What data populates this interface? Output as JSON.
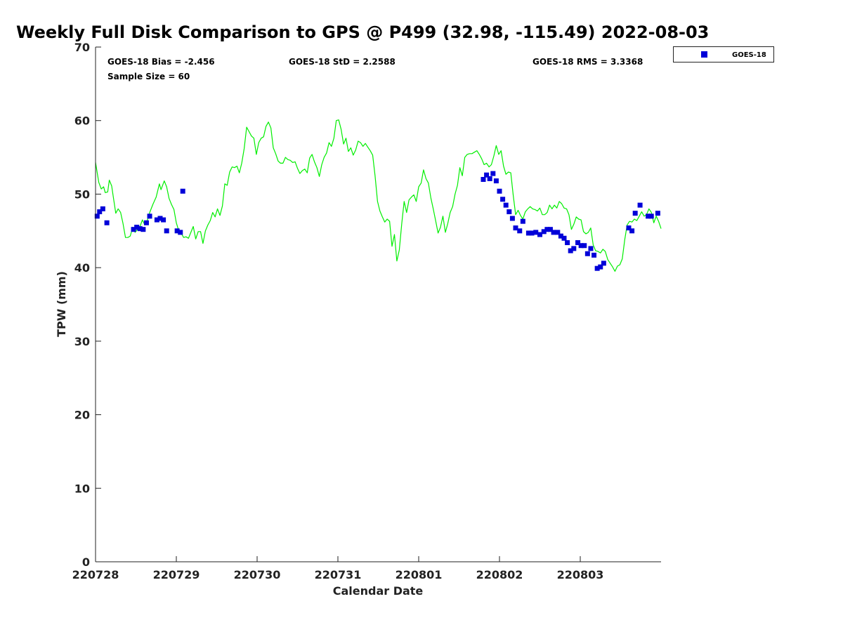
{
  "chart_data": {
    "type": "scatter",
    "title": "Weekly Full Disk Comparison to GPS @ P499 (32.98, -115.49) 2022-08-03",
    "xlabel": "Calendar Date",
    "ylabel": "TPW (mm)",
    "x_unit": "days after 220728 00Z",
    "xlim": [
      0,
      7
    ],
    "ylim": [
      0,
      70
    ],
    "yticks": [
      0,
      10,
      20,
      30,
      40,
      50,
      60,
      70
    ],
    "xticks": [
      {
        "pos": 0,
        "label": "220728"
      },
      {
        "pos": 1,
        "label": "220729"
      },
      {
        "pos": 2,
        "label": "220730"
      },
      {
        "pos": 3,
        "label": "220731"
      },
      {
        "pos": 4,
        "label": "220801"
      },
      {
        "pos": 5,
        "label": "220802"
      },
      {
        "pos": 6,
        "label": "220803"
      }
    ],
    "stats": {
      "bias": "GOES-18 Bias = -2.456",
      "std": "GOES-18 StD = 2.2588",
      "rms": "GOES-18 RMS = 3.3368",
      "sample": "Sample Size = 60"
    },
    "legend": {
      "label": "GOES-18",
      "position": "top-right outside",
      "color": "#0000d8"
    },
    "series": [
      {
        "name": "GOES-18",
        "kind": "markers",
        "color": "#0000d8",
        "points": [
          [
            0.02,
            47.0
          ],
          [
            0.05,
            47.6
          ],
          [
            0.09,
            48.0
          ],
          [
            0.14,
            46.1
          ],
          [
            0.47,
            45.2
          ],
          [
            0.51,
            45.5
          ],
          [
            0.55,
            45.3
          ],
          [
            0.59,
            45.2
          ],
          [
            0.63,
            46.1
          ],
          [
            0.67,
            47.0
          ],
          [
            0.76,
            46.5
          ],
          [
            0.8,
            46.7
          ],
          [
            0.84,
            46.5
          ],
          [
            0.88,
            45.0
          ],
          [
            1.01,
            45.0
          ],
          [
            1.05,
            44.8
          ],
          [
            1.08,
            50.4
          ],
          [
            4.8,
            52.0
          ],
          [
            4.84,
            52.6
          ],
          [
            4.88,
            52.1
          ],
          [
            4.92,
            52.8
          ],
          [
            4.96,
            51.8
          ],
          [
            5.0,
            50.4
          ],
          [
            5.04,
            49.3
          ],
          [
            5.08,
            48.5
          ],
          [
            5.12,
            47.6
          ],
          [
            5.16,
            46.7
          ],
          [
            5.2,
            45.4
          ],
          [
            5.25,
            45.0
          ],
          [
            5.29,
            46.3
          ],
          [
            5.36,
            44.7
          ],
          [
            5.4,
            44.7
          ],
          [
            5.45,
            44.8
          ],
          [
            5.5,
            44.5
          ],
          [
            5.55,
            44.9
          ],
          [
            5.59,
            45.2
          ],
          [
            5.63,
            45.2
          ],
          [
            5.67,
            44.8
          ],
          [
            5.72,
            44.8
          ],
          [
            5.76,
            44.3
          ],
          [
            5.8,
            44.0
          ],
          [
            5.84,
            43.4
          ],
          [
            5.88,
            42.3
          ],
          [
            5.92,
            42.6
          ],
          [
            5.97,
            43.4
          ],
          [
            6.01,
            43.0
          ],
          [
            6.05,
            43.0
          ],
          [
            6.09,
            41.9
          ],
          [
            6.13,
            42.6
          ],
          [
            6.17,
            41.7
          ],
          [
            6.21,
            39.9
          ],
          [
            6.25,
            40.1
          ],
          [
            6.29,
            40.6
          ],
          [
            6.6,
            45.4
          ],
          [
            6.64,
            45.0
          ],
          [
            6.68,
            47.4
          ],
          [
            6.74,
            48.5
          ],
          [
            6.84,
            47.0
          ],
          [
            6.88,
            47.0
          ],
          [
            6.96,
            47.4
          ]
        ]
      },
      {
        "name": "GPS",
        "kind": "line",
        "color": "#00ee00",
        "points": [
          [
            0.0,
            54.3
          ],
          [
            0.04,
            51.6
          ],
          [
            0.07,
            50.7
          ],
          [
            0.1,
            51.0
          ],
          [
            0.12,
            50.2
          ],
          [
            0.15,
            50.3
          ],
          [
            0.17,
            51.9
          ],
          [
            0.2,
            51.1
          ],
          [
            0.22,
            49.6
          ],
          [
            0.25,
            47.4
          ],
          [
            0.28,
            48.0
          ],
          [
            0.31,
            47.5
          ],
          [
            0.34,
            46.0
          ],
          [
            0.37,
            44.1
          ],
          [
            0.4,
            44.1
          ],
          [
            0.43,
            44.3
          ],
          [
            0.46,
            45.5
          ],
          [
            0.49,
            44.8
          ],
          [
            0.52,
            45.2
          ],
          [
            0.55,
            45.6
          ],
          [
            0.58,
            46.5
          ],
          [
            0.61,
            45.8
          ],
          [
            0.64,
            46.4
          ],
          [
            0.67,
            47.5
          ],
          [
            0.71,
            48.6
          ],
          [
            0.75,
            49.6
          ],
          [
            0.79,
            51.4
          ],
          [
            0.81,
            50.6
          ],
          [
            0.85,
            51.8
          ],
          [
            0.88,
            51.0
          ],
          [
            0.91,
            49.4
          ],
          [
            0.94,
            48.6
          ],
          [
            0.97,
            47.9
          ],
          [
            1.0,
            46.1
          ],
          [
            1.03,
            45.0
          ],
          [
            1.06,
            44.7
          ],
          [
            1.09,
            44.1
          ],
          [
            1.12,
            44.2
          ],
          [
            1.15,
            44.0
          ],
          [
            1.18,
            44.8
          ],
          [
            1.21,
            45.6
          ],
          [
            1.24,
            43.9
          ],
          [
            1.27,
            44.9
          ],
          [
            1.3,
            44.9
          ],
          [
            1.33,
            43.3
          ],
          [
            1.36,
            45.0
          ],
          [
            1.39,
            45.8
          ],
          [
            1.42,
            46.4
          ],
          [
            1.45,
            47.5
          ],
          [
            1.48,
            46.9
          ],
          [
            1.51,
            48.0
          ],
          [
            1.54,
            47.1
          ],
          [
            1.57,
            48.4
          ],
          [
            1.6,
            51.4
          ],
          [
            1.63,
            51.2
          ],
          [
            1.66,
            53.0
          ],
          [
            1.69,
            53.7
          ],
          [
            1.72,
            53.6
          ],
          [
            1.75,
            53.8
          ],
          [
            1.78,
            52.9
          ],
          [
            1.81,
            54.2
          ],
          [
            1.84,
            56.2
          ],
          [
            1.87,
            59.1
          ],
          [
            1.9,
            58.5
          ],
          [
            1.93,
            57.9
          ],
          [
            1.96,
            57.6
          ],
          [
            1.99,
            55.4
          ],
          [
            2.02,
            57.0
          ],
          [
            2.05,
            57.6
          ],
          [
            2.08,
            57.8
          ],
          [
            2.11,
            59.2
          ],
          [
            2.14,
            59.8
          ],
          [
            2.17,
            59.0
          ],
          [
            2.2,
            56.3
          ],
          [
            2.23,
            55.5
          ],
          [
            2.26,
            54.5
          ],
          [
            2.29,
            54.2
          ],
          [
            2.32,
            54.2
          ],
          [
            2.35,
            55.0
          ],
          [
            2.38,
            54.7
          ],
          [
            2.41,
            54.6
          ],
          [
            2.44,
            54.3
          ],
          [
            2.47,
            54.4
          ],
          [
            2.5,
            53.5
          ],
          [
            2.53,
            52.8
          ],
          [
            2.56,
            53.2
          ],
          [
            2.59,
            53.4
          ],
          [
            2.62,
            52.9
          ],
          [
            2.65,
            54.9
          ],
          [
            2.68,
            55.4
          ],
          [
            2.71,
            54.4
          ],
          [
            2.74,
            53.6
          ],
          [
            2.77,
            52.4
          ],
          [
            2.8,
            54.0
          ],
          [
            2.83,
            55.0
          ],
          [
            2.86,
            55.6
          ],
          [
            2.89,
            57.0
          ],
          [
            2.92,
            56.5
          ],
          [
            2.95,
            57.6
          ],
          [
            2.98,
            60.0
          ],
          [
            3.01,
            60.1
          ],
          [
            3.04,
            58.8
          ],
          [
            3.07,
            56.8
          ],
          [
            3.1,
            57.6
          ],
          [
            3.13,
            55.8
          ],
          [
            3.16,
            56.3
          ],
          [
            3.19,
            55.3
          ],
          [
            3.22,
            56.0
          ],
          [
            3.25,
            57.2
          ],
          [
            3.28,
            57.0
          ],
          [
            3.31,
            56.5
          ],
          [
            3.34,
            56.9
          ],
          [
            3.37,
            56.4
          ],
          [
            3.4,
            55.9
          ],
          [
            3.43,
            55.3
          ],
          [
            3.46,
            52.5
          ],
          [
            3.49,
            49.0
          ],
          [
            3.52,
            47.7
          ],
          [
            3.55,
            46.9
          ],
          [
            3.58,
            46.2
          ],
          [
            3.61,
            46.6
          ],
          [
            3.64,
            46.3
          ],
          [
            3.67,
            42.9
          ],
          [
            3.7,
            44.5
          ],
          [
            3.73,
            40.9
          ],
          [
            3.76,
            42.4
          ],
          [
            3.79,
            46.0
          ],
          [
            3.82,
            49.0
          ],
          [
            3.85,
            47.5
          ],
          [
            3.88,
            49.2
          ],
          [
            3.91,
            49.6
          ],
          [
            3.94,
            49.9
          ],
          [
            3.97,
            49.0
          ],
          [
            4.0,
            51.0
          ],
          [
            4.03,
            51.5
          ],
          [
            4.06,
            53.3
          ],
          [
            4.09,
            52.1
          ],
          [
            4.12,
            51.5
          ],
          [
            4.15,
            49.5
          ],
          [
            4.18,
            48.0
          ],
          [
            4.21,
            46.4
          ],
          [
            4.24,
            44.7
          ],
          [
            4.27,
            45.5
          ],
          [
            4.3,
            47.0
          ],
          [
            4.33,
            44.8
          ],
          [
            4.36,
            46.0
          ],
          [
            4.39,
            47.5
          ],
          [
            4.42,
            48.3
          ],
          [
            4.45,
            50.0
          ],
          [
            4.48,
            51.2
          ],
          [
            4.51,
            53.6
          ],
          [
            4.54,
            52.5
          ],
          [
            4.57,
            55.0
          ],
          [
            4.6,
            55.4
          ],
          [
            4.63,
            55.5
          ],
          [
            4.66,
            55.5
          ],
          [
            4.69,
            55.7
          ],
          [
            4.72,
            55.9
          ],
          [
            4.75,
            55.4
          ],
          [
            4.78,
            54.8
          ],
          [
            4.81,
            54.0
          ],
          [
            4.84,
            54.2
          ],
          [
            4.87,
            53.7
          ],
          [
            4.9,
            54.0
          ],
          [
            4.93,
            55.2
          ],
          [
            4.96,
            56.6
          ],
          [
            4.99,
            55.4
          ],
          [
            5.02,
            55.9
          ],
          [
            5.05,
            53.8
          ],
          [
            5.08,
            52.7
          ],
          [
            5.11,
            53.0
          ],
          [
            5.14,
            52.9
          ],
          [
            5.17,
            49.9
          ],
          [
            5.2,
            47.2
          ],
          [
            5.23,
            47.8
          ],
          [
            5.26,
            47.1
          ],
          [
            5.29,
            46.6
          ],
          [
            5.32,
            47.6
          ],
          [
            5.35,
            48.0
          ],
          [
            5.38,
            48.3
          ],
          [
            5.41,
            48.0
          ],
          [
            5.44,
            47.9
          ],
          [
            5.47,
            47.7
          ],
          [
            5.5,
            48.1
          ],
          [
            5.53,
            47.2
          ],
          [
            5.56,
            47.2
          ],
          [
            5.59,
            47.5
          ],
          [
            5.62,
            48.5
          ],
          [
            5.65,
            48.0
          ],
          [
            5.68,
            48.5
          ],
          [
            5.71,
            48.1
          ],
          [
            5.74,
            49.0
          ],
          [
            5.77,
            48.7
          ],
          [
            5.8,
            48.1
          ],
          [
            5.83,
            48.0
          ],
          [
            5.86,
            47.2
          ],
          [
            5.89,
            45.2
          ],
          [
            5.92,
            45.9
          ],
          [
            5.95,
            46.9
          ],
          [
            5.98,
            46.6
          ],
          [
            6.01,
            46.5
          ],
          [
            6.04,
            44.9
          ],
          [
            6.07,
            44.6
          ],
          [
            6.1,
            44.8
          ],
          [
            6.13,
            45.4
          ],
          [
            6.16,
            43.1
          ],
          [
            6.19,
            42.3
          ],
          [
            6.22,
            42.2
          ],
          [
            6.25,
            42.0
          ],
          [
            6.28,
            42.5
          ],
          [
            6.31,
            42.2
          ],
          [
            6.34,
            41.1
          ],
          [
            6.37,
            40.6
          ],
          [
            6.4,
            40.1
          ],
          [
            6.43,
            39.5
          ],
          [
            6.46,
            40.2
          ],
          [
            6.49,
            40.4
          ],
          [
            6.52,
            41.2
          ],
          [
            6.55,
            43.8
          ],
          [
            6.58,
            45.8
          ],
          [
            6.61,
            46.3
          ],
          [
            6.64,
            46.2
          ],
          [
            6.67,
            46.6
          ],
          [
            6.7,
            46.4
          ],
          [
            6.73,
            47.0
          ],
          [
            6.76,
            47.6
          ],
          [
            6.79,
            47.0
          ],
          [
            6.82,
            47.2
          ],
          [
            6.85,
            48.0
          ],
          [
            6.88,
            47.5
          ],
          [
            6.91,
            46.1
          ],
          [
            6.94,
            47.0
          ],
          [
            6.97,
            46.3
          ],
          [
            7.0,
            45.3
          ]
        ]
      }
    ]
  }
}
